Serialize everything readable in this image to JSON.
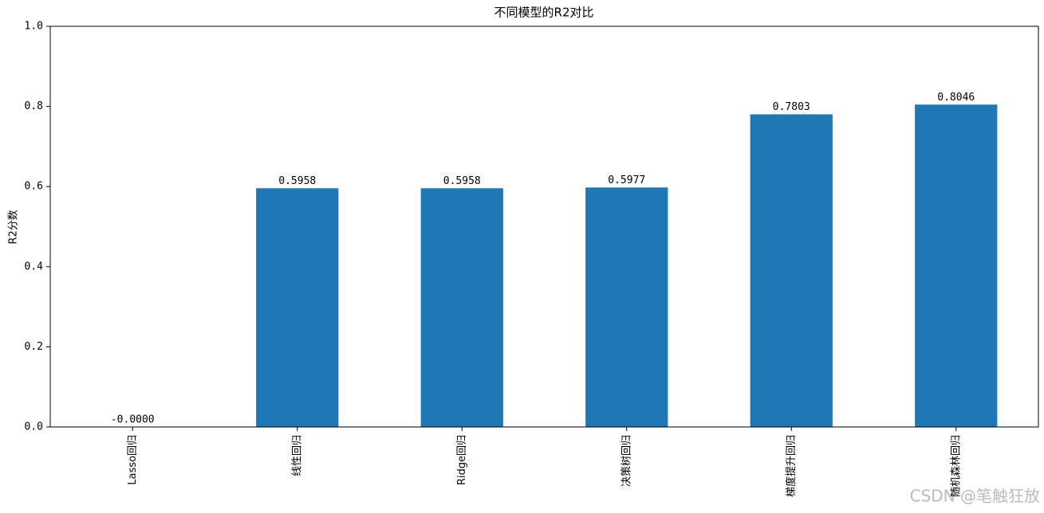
{
  "chart_data": {
    "type": "bar",
    "title": "不同模型的R2对比",
    "y_label": "R2分数",
    "categories": [
      "Lasso回归",
      "线性回归",
      "Ridge回归",
      "决策树回归",
      "梯度提升回归",
      "随机森林回归"
    ],
    "values": [
      0,
      0.5958,
      0.5958,
      0.5977,
      0.7803,
      0.8046
    ],
    "value_labels": [
      "-0.0000",
      "0.5958",
      "0.5958",
      "0.5977",
      "0.7803",
      "0.8046"
    ],
    "color": "#1f77b4",
    "ylim": [
      0,
      1
    ],
    "yticks": [
      {
        "value": 0,
        "label": "0.0"
      },
      {
        "value": 0.2,
        "label": "0.2"
      },
      {
        "value": 0.4,
        "label": "0.4"
      },
      {
        "value": 0.6,
        "label": "0.6"
      },
      {
        "value": 0.8,
        "label": "0.8"
      },
      {
        "value": 1,
        "label": "1.0"
      }
    ],
    "grid": false,
    "watermark": "CSDN @笔触狂放"
  }
}
